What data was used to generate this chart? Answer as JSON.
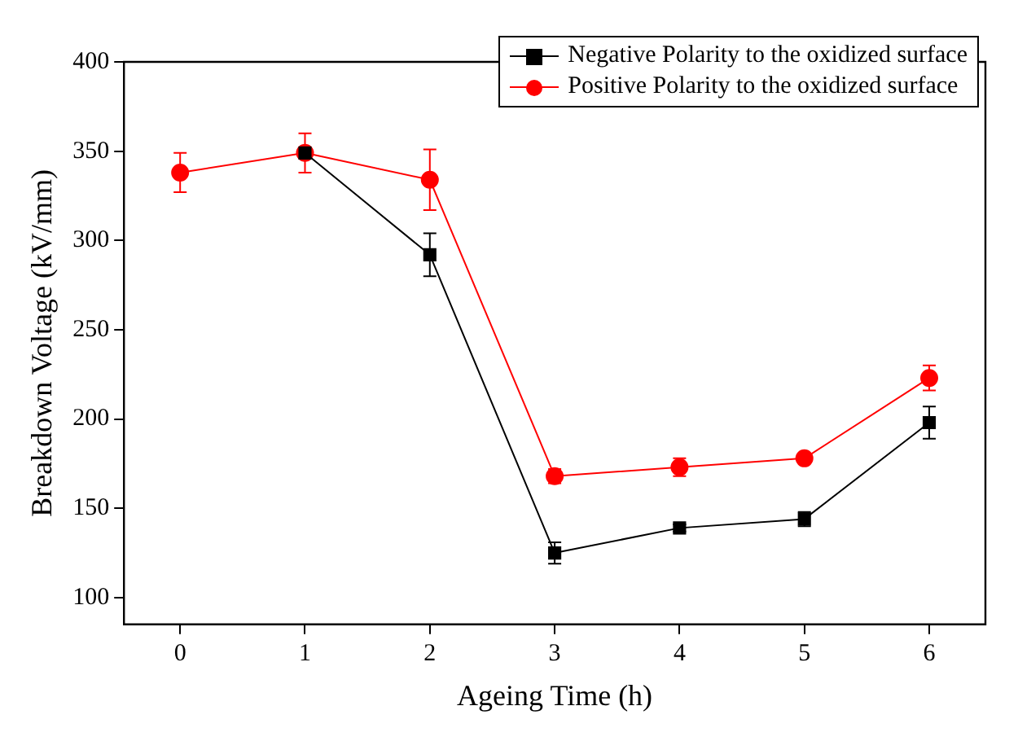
{
  "chart_data": {
    "type": "line",
    "xlabel": "Ageing Time (h)",
    "ylabel": "Breakdown Voltage (kV/mm)",
    "x": [
      0,
      1,
      2,
      3,
      4,
      5,
      6
    ],
    "series": [
      {
        "name": "Negative Polarity to the oxidized surface",
        "color": "#000000",
        "marker": "square",
        "values": [
          null,
          349,
          292,
          125,
          139,
          144,
          198
        ],
        "errors": [
          null,
          null,
          12,
          6,
          2,
          4,
          9
        ]
      },
      {
        "name": "Positive Polarity to the oxidized surface",
        "color": "#ff0000",
        "marker": "circle",
        "values": [
          338,
          349,
          334,
          168,
          173,
          178,
          223
        ],
        "errors": [
          11,
          11,
          17,
          4,
          5,
          2,
          7
        ]
      }
    ],
    "xlim": [
      -0.45,
      6.45
    ],
    "xticks": [
      0,
      1,
      2,
      3,
      4,
      5,
      6
    ],
    "ylim": [
      85,
      400
    ],
    "yticks": [
      100,
      150,
      200,
      250,
      300,
      350,
      400
    ],
    "grid": false,
    "legend": "top right",
    "line_style": "solid"
  }
}
